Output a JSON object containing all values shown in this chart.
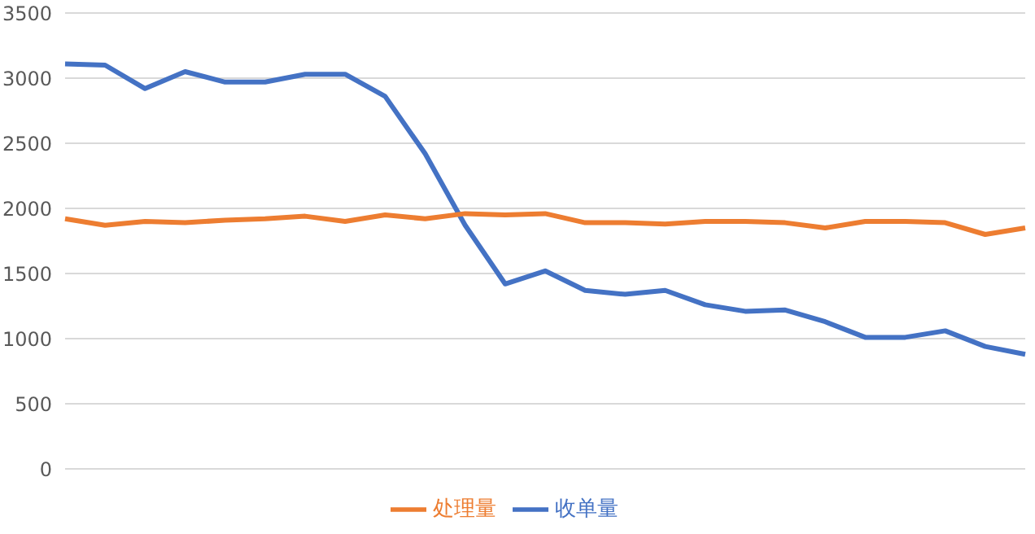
{
  "chart_data": {
    "type": "line",
    "categories": [
      null,
      null,
      null,
      null,
      null,
      null,
      null,
      null,
      null,
      null,
      null,
      null,
      null,
      null,
      null,
      null,
      null,
      null,
      null,
      null,
      null,
      null,
      null,
      null,
      null
    ],
    "series": [
      {
        "name": "收单量",
        "color": "#4472c4",
        "values": [
          3110,
          3100,
          2920,
          3050,
          2970,
          2970,
          3030,
          3030,
          2860,
          2420,
          1870,
          1420,
          1520,
          1370,
          1340,
          1370,
          1260,
          1210,
          1220,
          1130,
          1010,
          1010,
          1060,
          940,
          880
        ]
      },
      {
        "name": "处理量",
        "color": "#ed7d31",
        "values": [
          1920,
          1870,
          1900,
          1890,
          1910,
          1920,
          1940,
          1900,
          1950,
          1920,
          1960,
          1950,
          1960,
          1890,
          1890,
          1880,
          1900,
          1900,
          1890,
          1850,
          1900,
          1900,
          1890,
          1800,
          1850
        ]
      }
    ],
    "ylim": [
      0,
      3500
    ],
    "yticks": [
      0,
      500,
      1000,
      1500,
      2000,
      2500,
      3000,
      3500
    ],
    "grid": "y",
    "legend": "bottom",
    "marker": "none",
    "line_style": "solid"
  }
}
